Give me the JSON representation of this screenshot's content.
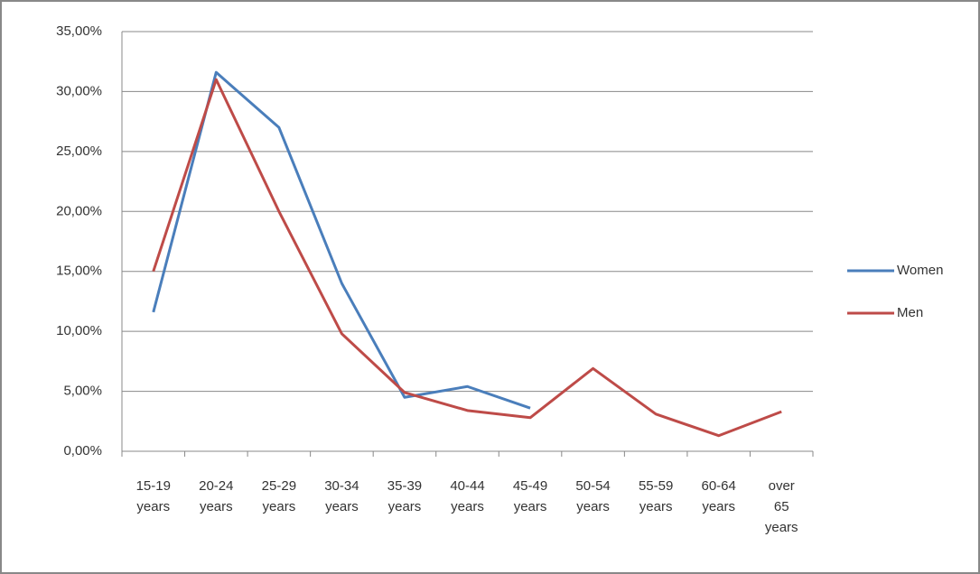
{
  "chart_data": {
    "type": "line",
    "categories": [
      "15-19 years",
      "20-24 years",
      "25-29 years",
      "30-34 years",
      "35-39 years",
      "40-44 years",
      "45-49 years",
      "50-54 years",
      "55-59 years",
      "60-64 years",
      "over 65 years"
    ],
    "series": [
      {
        "name": "Women",
        "color": "#4a7ebb",
        "values": [
          11.6,
          31.6,
          27.0,
          14.0,
          4.5,
          5.4,
          3.6,
          null,
          null,
          null,
          null
        ]
      },
      {
        "name": "Men",
        "color": "#be4b48",
        "values": [
          15.0,
          31.0,
          20.0,
          9.8,
          4.9,
          3.4,
          2.8,
          6.9,
          3.1,
          1.3,
          3.3
        ]
      }
    ],
    "ylim": [
      0,
      35
    ],
    "yticks": [
      {
        "value": 0,
        "label": "0,00%"
      },
      {
        "value": 5,
        "label": "5,00%"
      },
      {
        "value": 10,
        "label": "10,00%"
      },
      {
        "value": 15,
        "label": "15,00%"
      },
      {
        "value": 20,
        "label": "20,00%"
      },
      {
        "value": 25,
        "label": "25,00%"
      },
      {
        "value": 30,
        "label": "30,00%"
      },
      {
        "value": 35,
        "label": "35,00%"
      }
    ],
    "grid": true,
    "legend": "right"
  }
}
